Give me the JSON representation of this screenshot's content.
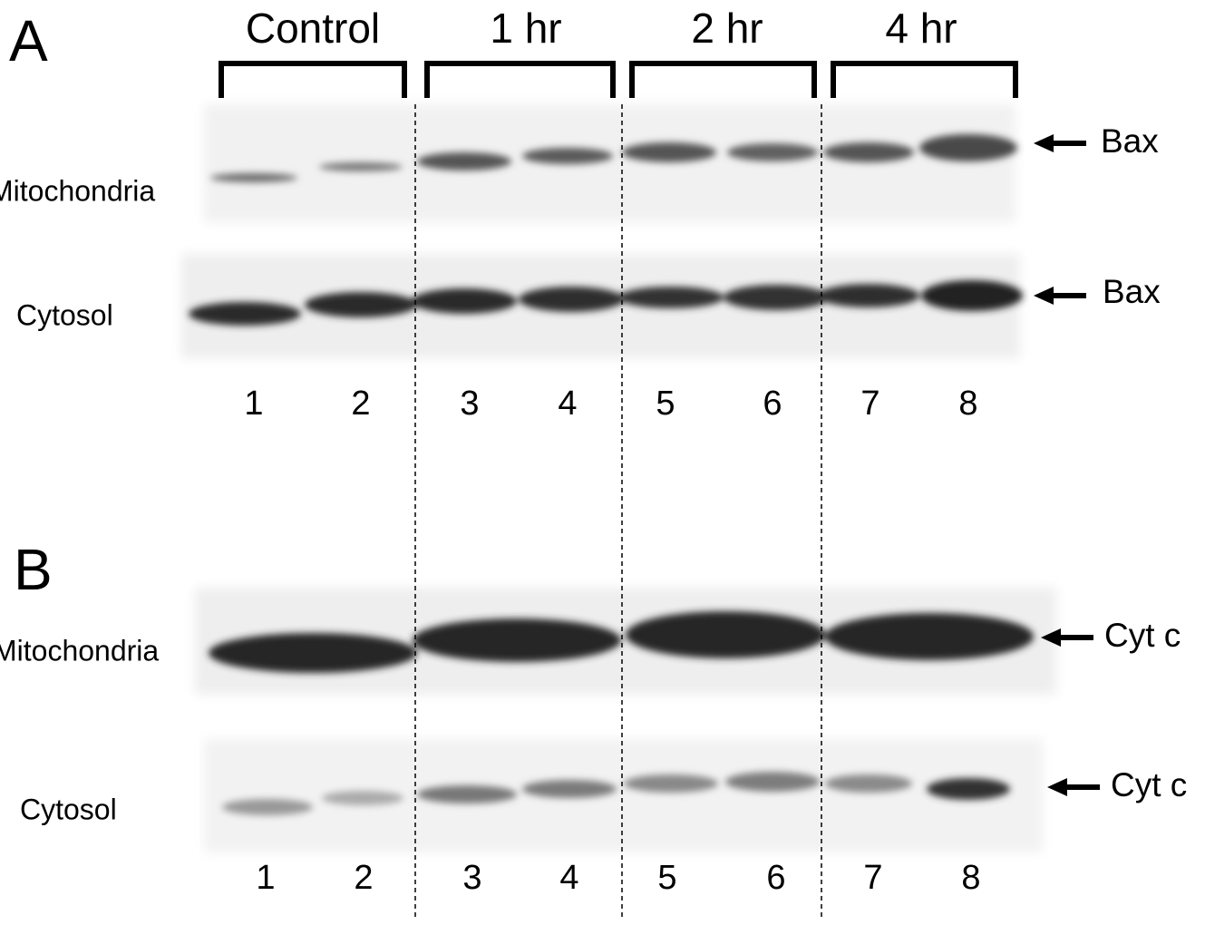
{
  "groups": [
    "Control",
    "1 hr",
    "2 hr",
    "4 hr"
  ],
  "panels": [
    {
      "label": "A",
      "rows": [
        {
          "label": "Mitochondria",
          "marker": "Bax"
        },
        {
          "label": "Cytosol",
          "marker": "Bax"
        }
      ],
      "lanes": [
        1,
        2,
        3,
        4,
        5,
        6,
        7,
        8
      ]
    },
    {
      "label": "B",
      "rows": [
        {
          "label": "Mitochondria",
          "marker": "Cyt c"
        },
        {
          "label": "Cytosol",
          "marker": "Cyt c"
        }
      ],
      "lanes": [
        1,
        2,
        3,
        4,
        5,
        6,
        7,
        8
      ]
    }
  ]
}
